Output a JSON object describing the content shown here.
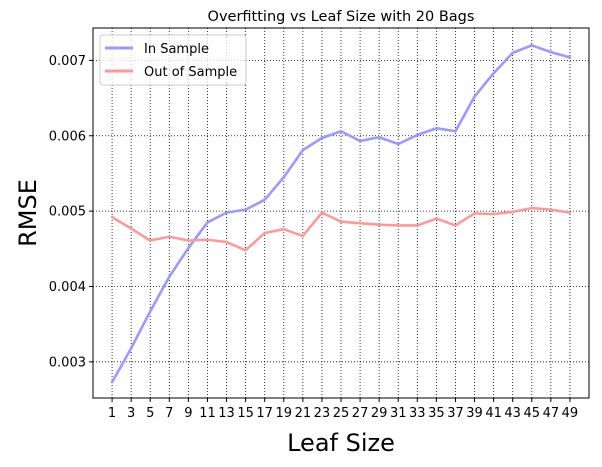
{
  "chart_data": {
    "type": "line",
    "title": "Overfitting vs Leaf Size with 20 Bags",
    "xlabel": "Leaf Size",
    "ylabel": "RMSE",
    "x": [
      1,
      3,
      5,
      7,
      9,
      11,
      13,
      15,
      17,
      19,
      21,
      23,
      25,
      27,
      29,
      31,
      33,
      35,
      37,
      39,
      41,
      43,
      45,
      47,
      49
    ],
    "xlim": [
      -1,
      51
    ],
    "ylim": [
      0.00252,
      0.00743
    ],
    "yticks": [
      0.003,
      0.004,
      0.005,
      0.006,
      0.007
    ],
    "ytick_labels": [
      "0.003",
      "0.004",
      "0.005",
      "0.006",
      "0.007"
    ],
    "grid": true,
    "legend_position": "top-left",
    "series": [
      {
        "name": "In Sample",
        "color": "#9999ff",
        "values": [
          0.00273,
          0.00318,
          0.00367,
          0.00413,
          0.00451,
          0.00485,
          0.00498,
          0.00502,
          0.00515,
          0.00545,
          0.00581,
          0.00597,
          0.00606,
          0.00593,
          0.00598,
          0.00589,
          0.00601,
          0.0061,
          0.00606,
          0.00652,
          0.00683,
          0.0071,
          0.0072,
          0.00711,
          0.00704
        ]
      },
      {
        "name": "Out of Sample",
        "color": "#ff9999",
        "values": [
          0.00492,
          0.00477,
          0.00461,
          0.00466,
          0.00461,
          0.00462,
          0.00459,
          0.00448,
          0.00471,
          0.00476,
          0.00467,
          0.00498,
          0.00486,
          0.00484,
          0.00482,
          0.00481,
          0.00481,
          0.0049,
          0.00481,
          0.00497,
          0.00496,
          0.00499,
          0.00504,
          0.00502,
          0.00498
        ]
      }
    ]
  }
}
